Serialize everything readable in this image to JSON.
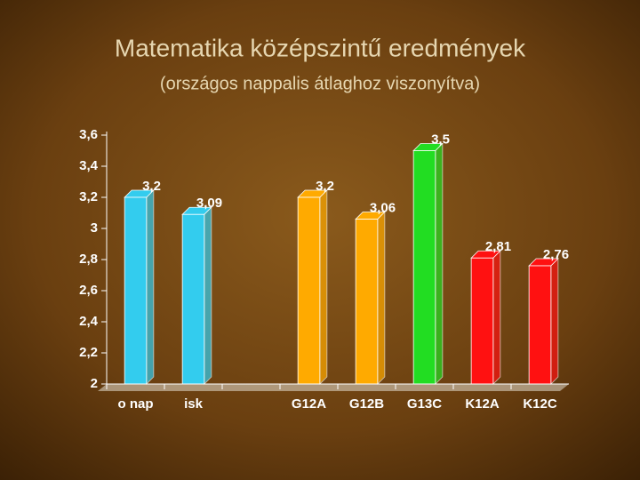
{
  "chart_data": {
    "type": "bar",
    "title": "Matematika középszintű eredmények",
    "subtitle": "(országos nappalis átlaghoz viszonyítva)",
    "categories": [
      "o nap",
      "isk",
      null,
      "G12A",
      "G12B",
      "G13C",
      "K12A",
      "K12C"
    ],
    "values": [
      3.2,
      3.09,
      null,
      3.2,
      3.06,
      3.5,
      2.81,
      2.76
    ],
    "value_labels": [
      "3,2",
      "3,09",
      null,
      "3,2",
      "3,06",
      "3,5",
      "2,81",
      "2,76"
    ],
    "colors": [
      "#33ccee",
      "#33ccee",
      null,
      "#ffaa00",
      "#ffaa00",
      "#22dd22",
      "#ff1111",
      "#ff1111"
    ],
    "ylim": [
      2,
      3.6
    ],
    "yticks": [
      2,
      {
        "value": 2.2,
        "label": "2,2"
      },
      {
        "value": 2.4,
        "label": "2,4"
      },
      {
        "value": 2.6,
        "label": "2,6"
      },
      {
        "value": 2.8,
        "label": "2,8"
      },
      3,
      {
        "value": 3.2,
        "label": "3,2"
      },
      {
        "value": 3.4,
        "label": "3,4"
      },
      {
        "value": 3.6,
        "label": "3,6"
      }
    ]
  }
}
